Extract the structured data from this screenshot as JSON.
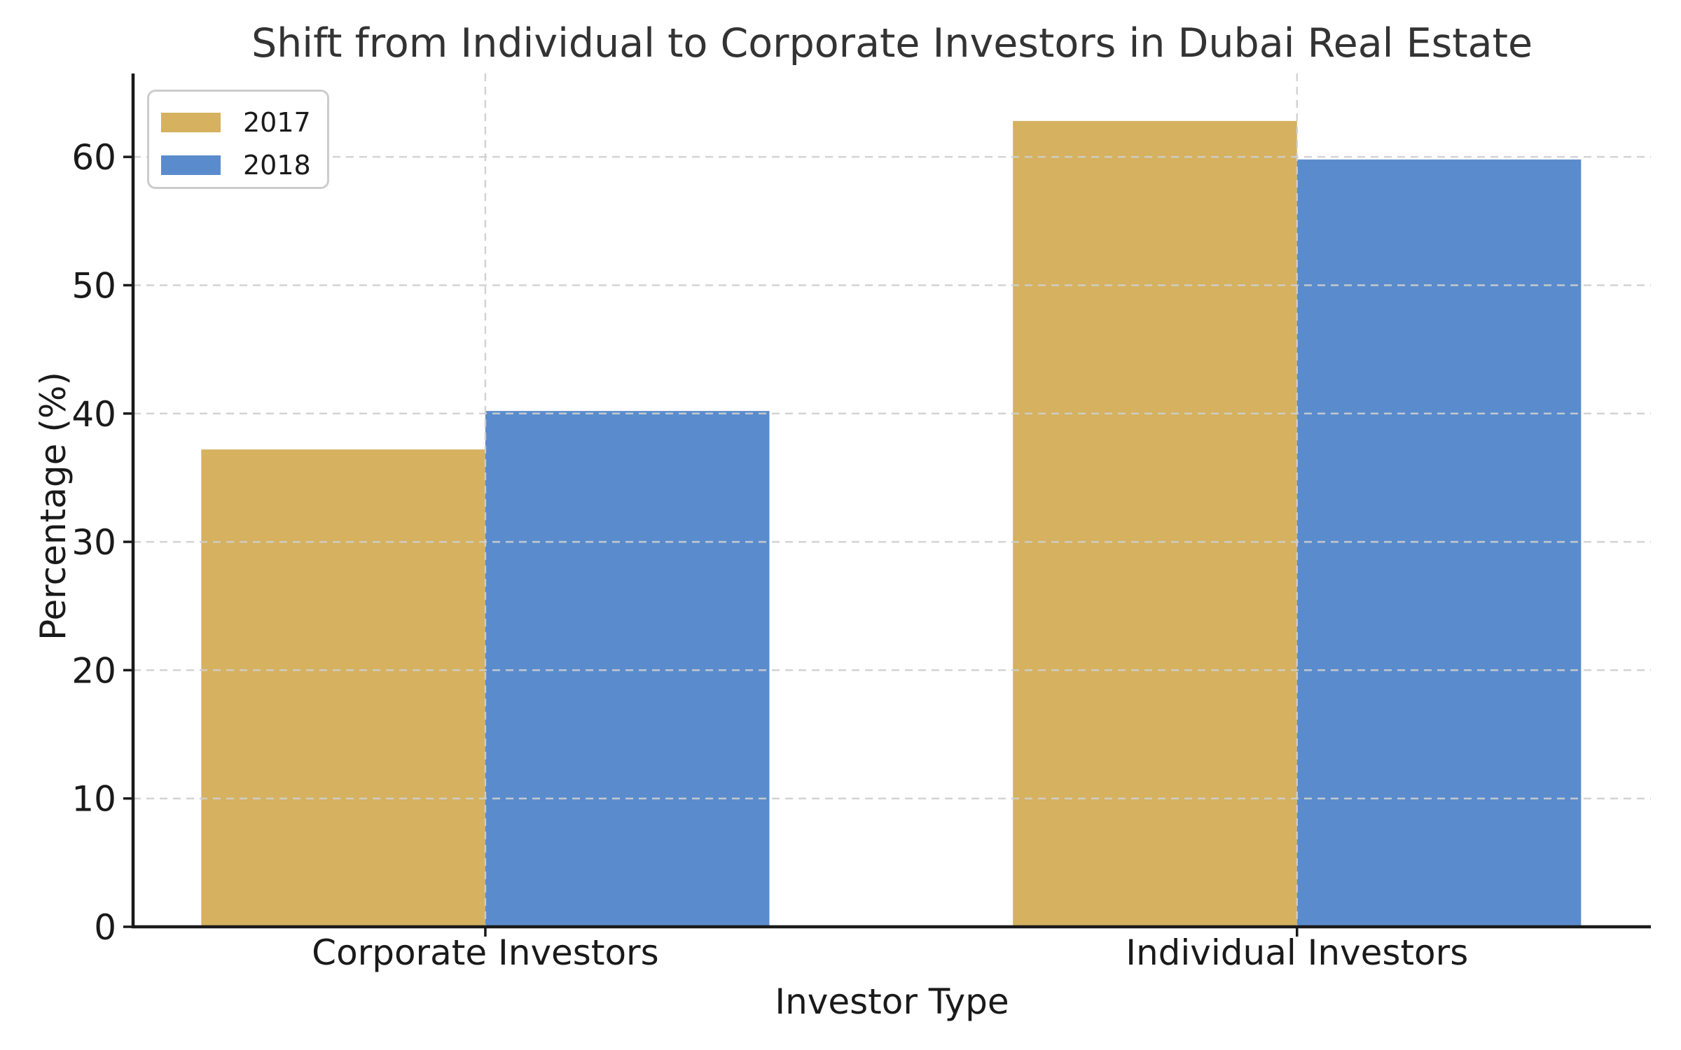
{
  "chart_data": {
    "type": "bar",
    "title": "Shift from Individual to Corporate Investors in Dubai Real Estate",
    "xlabel": "Investor Type",
    "ylabel": "Percentage (%)",
    "categories": [
      "Corporate Investors",
      "Individual Investors"
    ],
    "series": [
      {
        "name": "2017",
        "color": "#D5B160",
        "values": [
          37.2,
          62.8
        ]
      },
      {
        "name": "2018",
        "color": "#5A8CCD",
        "values": [
          40.2,
          59.8
        ]
      }
    ],
    "ylim": [
      0,
      66.5
    ],
    "yticks": [
      0,
      10,
      20,
      30,
      40,
      50,
      60
    ],
    "bar_width": 0.35,
    "grid": "dashed",
    "grid_on": true,
    "legend_position": "upper-left"
  },
  "colors": {
    "axis": "#1a1a1a",
    "tick_text": "#1a1a1a",
    "title_text": "#333333",
    "grid": "#cfcfcf",
    "legend_border": "#cccccc",
    "background": "#ffffff"
  }
}
